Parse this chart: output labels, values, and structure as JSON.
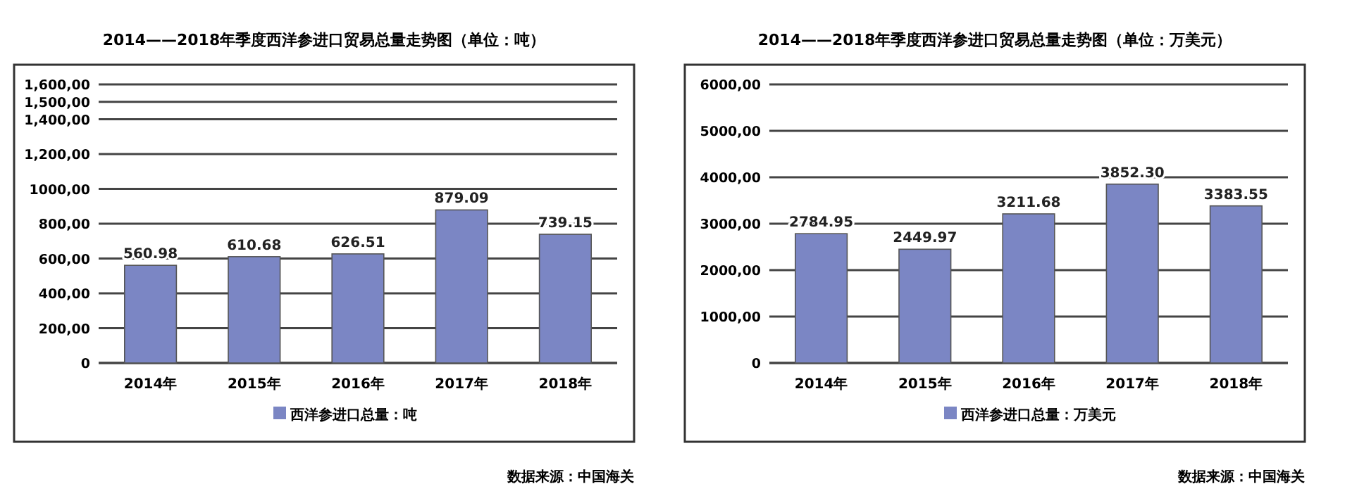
{
  "chart_data": [
    {
      "type": "bar",
      "title": "2014——2018年季度西洋参进口贸易总量走势图（单位：吨）",
      "categories": [
        "2014年",
        "2015年",
        "2016年",
        "2017年",
        "2018年"
      ],
      "series": [
        {
          "name": "西洋参进口总量：吨",
          "color": "#7b86c4",
          "values": [
            560.98,
            610.68,
            626.51,
            879.09,
            739.15
          ],
          "value_labels": [
            "560.98",
            "610.68",
            "626.51",
            "879.09",
            "739.15"
          ]
        }
      ],
      "ylim": [
        0,
        1600
      ],
      "yticks": [
        0,
        {
          "value": 200,
          "label": "200,00"
        },
        {
          "value": 400,
          "label": "400,00"
        },
        {
          "value": 600,
          "label": "600,00"
        },
        {
          "value": 800,
          "label": "800,00"
        },
        {
          "value": 1000,
          "label": "1000,00"
        },
        {
          "value": 1200,
          "label": "1,200,00"
        },
        {
          "value": 1400,
          "label": "1,400,00"
        },
        {
          "value": 1500,
          "label": "1,500,00"
        },
        {
          "value": 1600,
          "label": "1,600,00"
        }
      ],
      "grid": "y",
      "legend": "bottom",
      "annotations": [
        "数据来源：中国海关"
      ]
    },
    {
      "type": "bar",
      "title": "2014——2018年季度西洋参进口贸易总量走势图（单位：万美元）",
      "categories": [
        "2014年",
        "2015年",
        "2016年",
        "2017年",
        "2018年"
      ],
      "series": [
        {
          "name": "西洋参进口总量：万美元",
          "color": "#7b86c4",
          "values": [
            2784.95,
            2449.97,
            3211.68,
            3852.3,
            3383.55
          ],
          "value_labels": [
            "2784.95",
            "2449.97",
            "3211.68",
            "3852.30",
            "3383.55"
          ]
        }
      ],
      "ylim": [
        0,
        6000
      ],
      "yticks": [
        0,
        {
          "value": 1000,
          "label": "1000,00"
        },
        {
          "value": 2000,
          "label": "2000,00"
        },
        {
          "value": 3000,
          "label": "3000,00"
        },
        {
          "value": 4000,
          "label": "4000,00"
        },
        {
          "value": 5000,
          "label": "5000,00"
        },
        {
          "value": 6000,
          "label": "6000,00"
        }
      ],
      "grid": "y",
      "legend": "bottom",
      "annotations": [
        "数据来源：中国海关"
      ]
    }
  ]
}
